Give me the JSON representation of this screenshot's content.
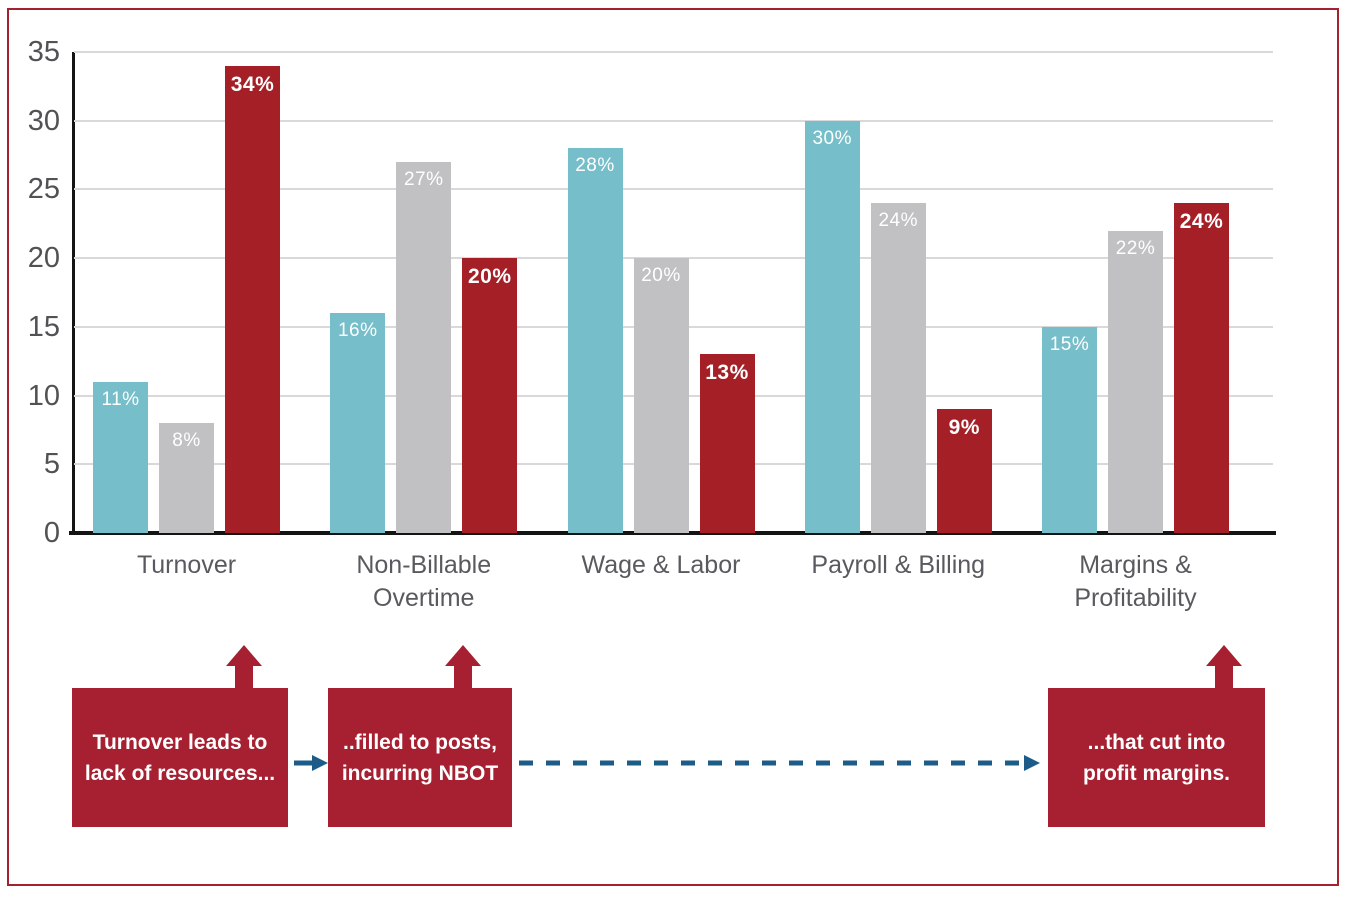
{
  "frame": {
    "border_color": "#a5212f"
  },
  "chart_data": {
    "type": "bar",
    "title": "",
    "xlabel": "",
    "ylabel": "",
    "categories": [
      "Turnover",
      "Non-Billable Overtime",
      "Wage & Labor",
      "Payroll & Billing",
      "Margins & Profitability"
    ],
    "series": [
      {
        "name": "teal-series",
        "color": "#76bec9",
        "values": [
          11,
          16,
          28,
          30,
          15
        ],
        "labels": [
          "11%",
          "16%",
          "28%",
          "30%",
          "15%"
        ],
        "label_bold": false
      },
      {
        "name": "gray-series",
        "color": "#c1c1c3",
        "values": [
          8,
          27,
          20,
          24,
          22
        ],
        "labels": [
          "8%",
          "27%",
          "20%",
          "24%",
          "22%"
        ],
        "label_bold": false
      },
      {
        "name": "red-series",
        "color": "#a51f26",
        "values": [
          34,
          20,
          13,
          9,
          24
        ],
        "labels": [
          "34%",
          "20%",
          "13%",
          "9%",
          "24%"
        ],
        "label_bold": true
      }
    ],
    "ylim": [
      0,
      35
    ],
    "yticks": [
      0,
      5,
      10,
      15,
      20,
      25,
      30,
      35
    ],
    "grid": true,
    "legend_position": "none",
    "value_label_color": "#ffffff",
    "grid_color": "#d9d9d9",
    "axis_color": "#141414",
    "tick_label_color": "#515254",
    "category_label_color": "#595a5f"
  },
  "flow": {
    "box_color": "#a62031",
    "arrow_color": "#1d5c88",
    "boxes": [
      {
        "text": "Turnover leads to lack of resources..."
      },
      {
        "text": "..filled to posts, incurring NBOT"
      },
      {
        "text": "...that cut into profit margins."
      }
    ]
  }
}
